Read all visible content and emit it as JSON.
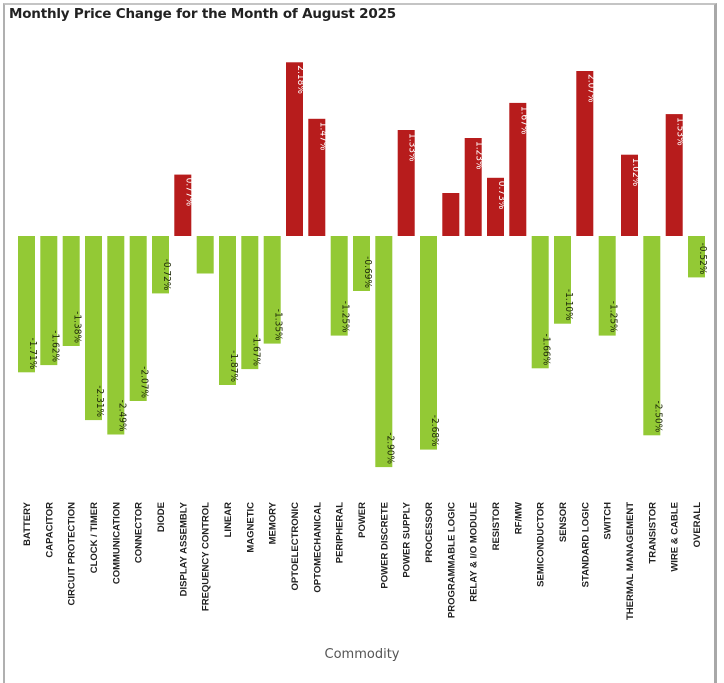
{
  "chart_data": {
    "type": "bar",
    "title": "Monthly Price Change for the Month of August 2025",
    "xlabel": "Commodity",
    "ylabel": "",
    "ylim": [
      -2.9,
      2.18
    ],
    "grid": false,
    "legend": "none",
    "value_format": "percent",
    "colors": {
      "positive": "#b71c1c",
      "negative": "#93c935"
    },
    "categories": [
      "BATTERY",
      "CAPACITOR",
      "CIRCUIT PROTECTION",
      "CLOCK / TIMER",
      "COMMUNICATION",
      "CONNECTOR",
      "DIODE",
      "DISPLAY ASSEMBLY",
      "FREQUENCY CONTROL",
      "LINEAR",
      "MAGNETIC",
      "MEMORY",
      "OPTOELECTRONIC",
      "OPTOMECHANICAL",
      "PERIPHERAL",
      "POWER",
      "POWER DISCRETE",
      "POWER SUPPLY",
      "PROCESSOR",
      "PROGRAMMABLE LOGIC",
      "RELAY & I/O MODULE",
      "RESISTOR",
      "RF/MW",
      "SEMICONDUCTOR",
      "SENSOR",
      "STANDARD LOGIC",
      "SWITCH",
      "THERMAL MANAGEMENT",
      "TRANSISTOR",
      "WIRE & CABLE",
      "OVERALL"
    ],
    "values": [
      -1.71,
      -1.62,
      -1.38,
      -2.31,
      -2.49,
      -2.07,
      -0.72,
      0.77,
      -0.47,
      -1.87,
      -1.67,
      -1.35,
      2.18,
      1.47,
      -1.25,
      -0.69,
      -2.9,
      1.33,
      -2.68,
      0.54,
      1.23,
      0.73,
      1.67,
      -1.66,
      -1.1,
      2.07,
      -1.25,
      1.02,
      -2.5,
      1.53,
      -0.52
    ],
    "data_labels": [
      "-1.71%",
      "-1.62%",
      "-1.38%",
      "-2.31%",
      "-2.49%",
      "-2.07%",
      "-0.72%",
      "0.77%",
      "",
      "-1.87%",
      "-1.67%",
      "-1.35%",
      "2.18%",
      "1.47%",
      "-1.25%",
      "-0.69%",
      "-2.90%",
      "1.33%",
      "-2.68%",
      "",
      "1.23%",
      "0.73%",
      "1.67%",
      "-1.66%",
      "-1.10%",
      "2.07%",
      "-1.25%",
      "1.02%",
      "-2.50%",
      "1.53%",
      "-0.52%"
    ]
  }
}
